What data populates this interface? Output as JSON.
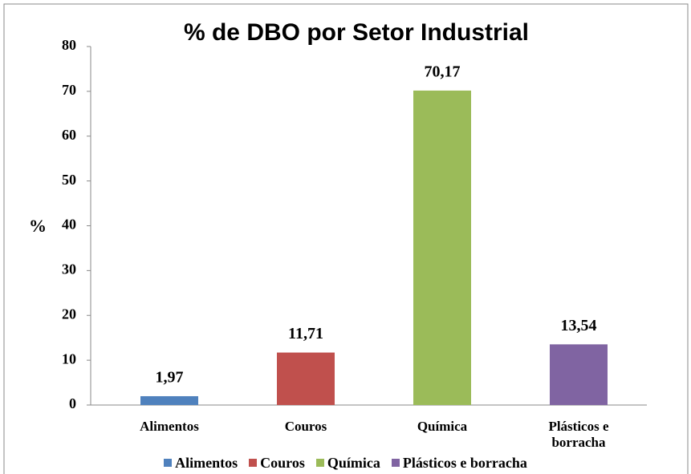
{
  "chart_data": {
    "type": "bar",
    "title": "% de DBO por Setor Industrial",
    "y_label": "%",
    "categories": [
      "Alimentos",
      "Couros",
      "Química",
      "Plásticos e borracha"
    ],
    "values": [
      1.97,
      11.71,
      70.17,
      13.54
    ],
    "value_labels": [
      "1,97",
      "11,71",
      "70,17",
      "13,54"
    ],
    "colors": [
      "#4f81bd",
      "#c0504d",
      "#9bbb59",
      "#8064a2"
    ],
    "ylim": [
      0,
      80
    ],
    "yticks": [
      0,
      10,
      20,
      30,
      40,
      50,
      60,
      70,
      80
    ],
    "grid": false,
    "legend": "bottom"
  }
}
